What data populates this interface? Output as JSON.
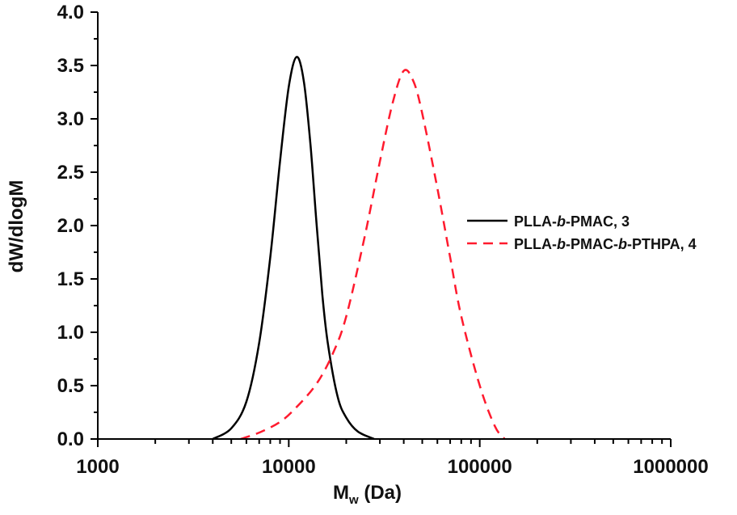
{
  "chart_data": {
    "type": "line",
    "title": "",
    "xlabel": "M",
    "xlabel_subscript": "w",
    "xlabel_unit": " (Da)",
    "ylabel": "dW/dlogM",
    "xscale": "log",
    "xlim": [
      1000,
      1000000
    ],
    "ylim": [
      0.0,
      4.0
    ],
    "grid": false,
    "legend_position": "center-right",
    "x_ticks": [
      "1000",
      "10000",
      "100000",
      "1000000"
    ],
    "y_ticks": [
      "0.0",
      "0.5",
      "1.0",
      "1.5",
      "2.0",
      "2.5",
      "3.0",
      "3.5",
      "4.0"
    ],
    "series": [
      {
        "name": "PLLA-b-PMAC, 3",
        "legend_parts": [
          "PLLA-",
          "b",
          "-PMAC, 3"
        ],
        "color": "#000000",
        "style": "solid",
        "x": [
          4000,
          5000,
          6000,
          7000,
          8000,
          9000,
          10000,
          11000,
          12000,
          13000,
          14000,
          15000,
          16000,
          18000,
          20000,
          23000,
          28000
        ],
        "y": [
          0.0,
          0.1,
          0.35,
          0.9,
          1.7,
          2.6,
          3.3,
          3.58,
          3.35,
          2.75,
          2.0,
          1.35,
          0.9,
          0.4,
          0.2,
          0.07,
          0.0
        ]
      },
      {
        "name": "PLLA-b-PMAC-b-PTHPA, 4",
        "legend_parts": [
          "PLLA-",
          "b",
          "-PMAC-",
          "b",
          "-PTHPA, 4"
        ],
        "color": "#ff1a2e",
        "style": "dashed",
        "x": [
          5600,
          7000,
          9000,
          11000,
          14000,
          17000,
          20000,
          25000,
          30000,
          35000,
          40000,
          45000,
          50000,
          60000,
          70000,
          80000,
          100000,
          120000,
          135000
        ],
        "y": [
          0.0,
          0.06,
          0.16,
          0.3,
          0.52,
          0.8,
          1.15,
          1.9,
          2.6,
          3.15,
          3.45,
          3.35,
          3.05,
          2.35,
          1.7,
          1.15,
          0.5,
          0.12,
          0.0
        ]
      }
    ]
  }
}
